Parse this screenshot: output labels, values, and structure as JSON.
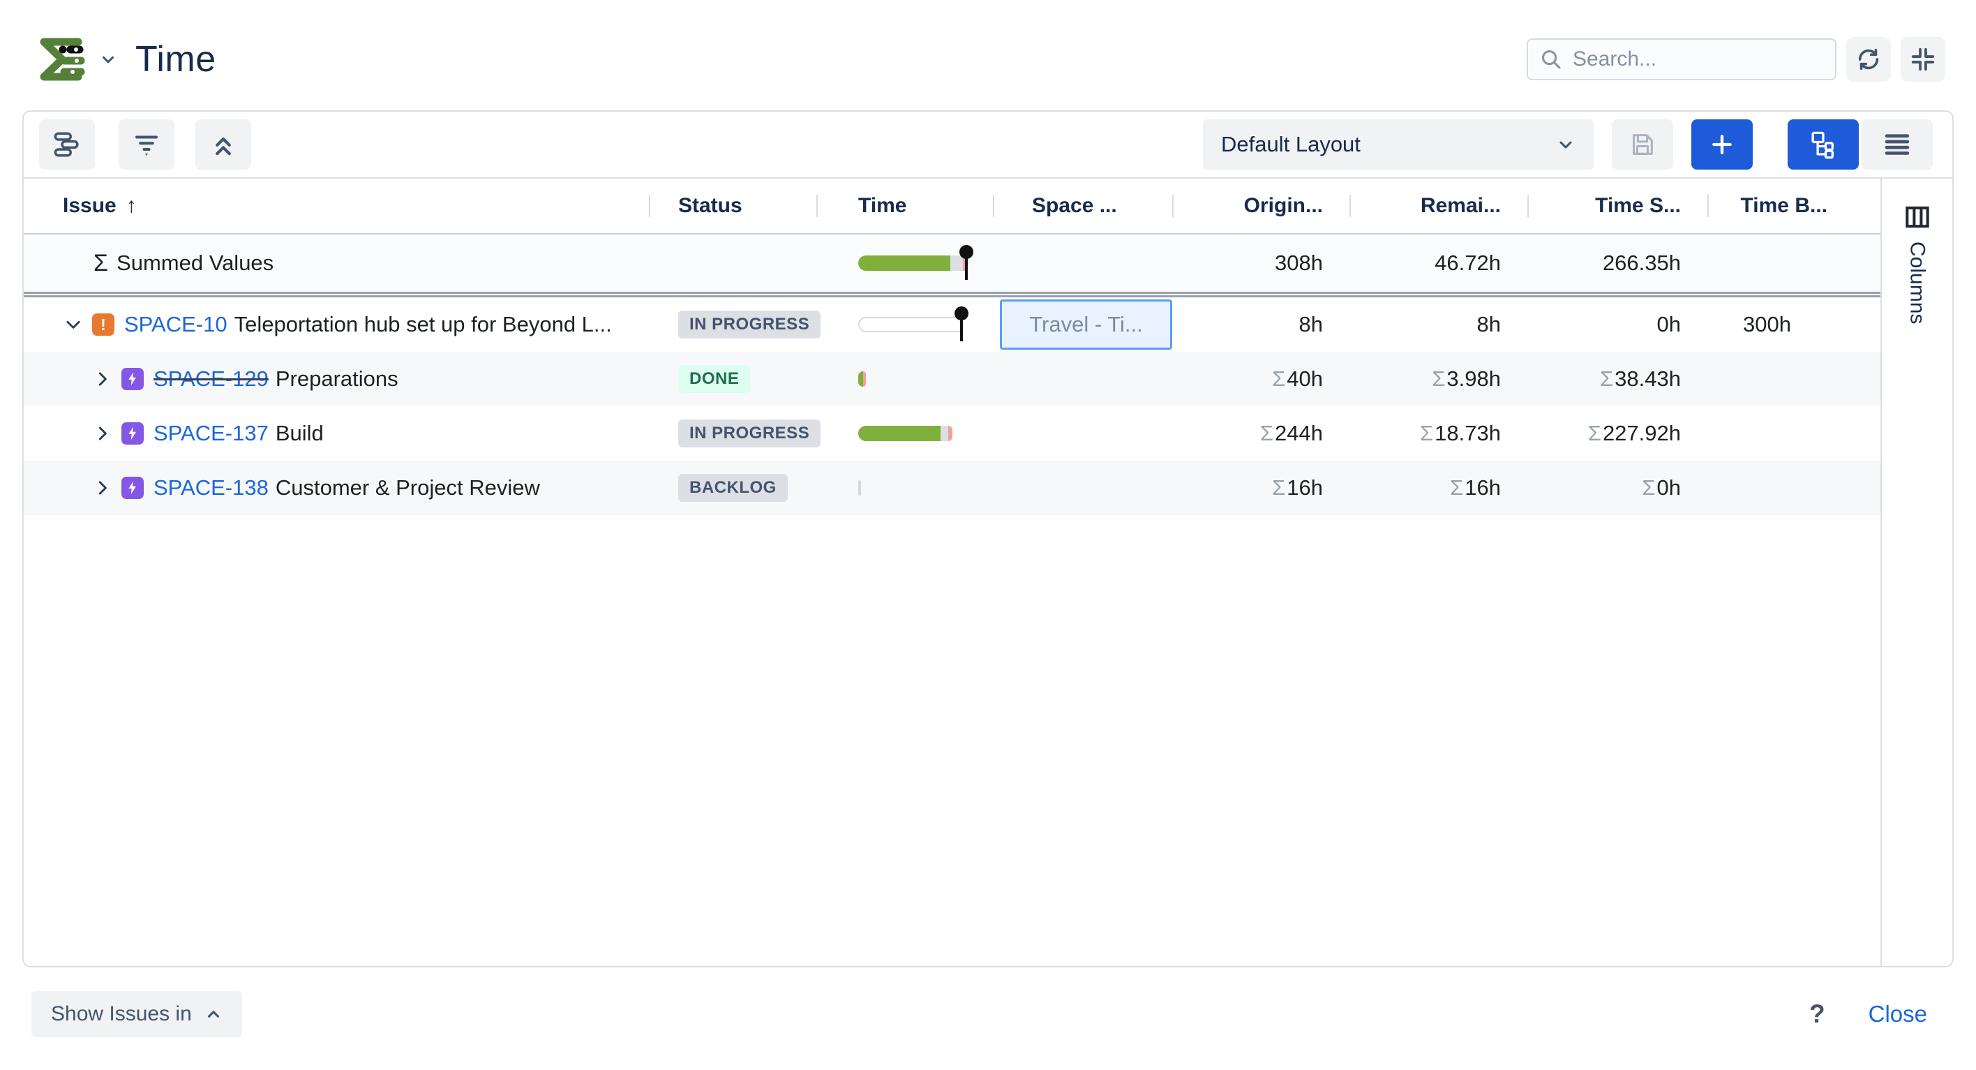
{
  "header": {
    "title": "Time",
    "search_placeholder": "Search..."
  },
  "toolbar": {
    "layout_selector_value": "Default Layout"
  },
  "table": {
    "headers": {
      "issue": "Issue",
      "sort_indicator": "↑",
      "status": "Status",
      "time": "Time",
      "space": "Space ...",
      "original_estimate": "Origin...",
      "remaining_estimate": "Remai...",
      "time_spent": "Time S...",
      "time_budget": "Time B..."
    },
    "summary_row": {
      "sigma": "Σ",
      "label": "Summed Values",
      "original_estimate": "308h",
      "remaining_estimate": "46.72h",
      "time_spent": "266.35h",
      "time_budget": "",
      "bar": {
        "segments": [
          {
            "color": "green",
            "width": 132
          },
          {
            "color": "gray",
            "width": 18
          },
          {
            "color": "red",
            "width": 7
          }
        ],
        "pin": true
      }
    },
    "rows": [
      {
        "key": "SPACE-10",
        "summary": "Teleportation hub set up for Beyond L...",
        "issue_type_icon": "warning-icon",
        "chevron": "down",
        "level": 0,
        "strikethrough": false,
        "zebra": false,
        "status": "IN PROGRESS",
        "status_variant": "gray",
        "bar": {
          "segments": [
            {
              "color": "track",
              "width": 150
            }
          ],
          "pin": true
        },
        "space_value": "Travel - Ti...",
        "space_selected": true,
        "original_estimate": {
          "sigma": false,
          "value": "8h"
        },
        "remaining_estimate": {
          "sigma": false,
          "value": "8h"
        },
        "time_spent": {
          "sigma": false,
          "value": "0h"
        },
        "time_budget": {
          "sigma": false,
          "value": "300h"
        }
      },
      {
        "key": "SPACE-129",
        "summary": "Preparations",
        "issue_type_icon": "bolt-icon",
        "chevron": "right",
        "level": 1,
        "strikethrough": true,
        "zebra": true,
        "status": "DONE",
        "status_variant": "green",
        "bar": {
          "segments": [
            {
              "color": "green",
              "width": 7
            },
            {
              "color": "red",
              "width": 4
            }
          ],
          "pin": false
        },
        "space_value": "",
        "space_selected": false,
        "original_estimate": {
          "sigma": true,
          "value": "40h"
        },
        "remaining_estimate": {
          "sigma": true,
          "value": "3.98h"
        },
        "time_spent": {
          "sigma": true,
          "value": "38.43h"
        },
        "time_budget": {
          "sigma": false,
          "value": ""
        }
      },
      {
        "key": "SPACE-137",
        "summary": "Build",
        "issue_type_icon": "bolt-icon",
        "chevron": "right",
        "level": 1,
        "strikethrough": false,
        "zebra": false,
        "status": "IN PROGRESS",
        "status_variant": "gray",
        "bar": {
          "segments": [
            {
              "color": "green",
              "width": 118
            },
            {
              "color": "gray",
              "width": 11
            },
            {
              "color": "red",
              "width": 6
            }
          ],
          "pin": false
        },
        "space_value": "",
        "space_selected": false,
        "original_estimate": {
          "sigma": true,
          "value": "244h"
        },
        "remaining_estimate": {
          "sigma": true,
          "value": "18.73h"
        },
        "time_spent": {
          "sigma": true,
          "value": "227.92h"
        },
        "time_budget": {
          "sigma": false,
          "value": ""
        }
      },
      {
        "key": "SPACE-138",
        "summary": "Customer & Project Review",
        "issue_type_icon": "bolt-icon",
        "chevron": "right",
        "level": 1,
        "strikethrough": false,
        "zebra": true,
        "status": "BACKLOG",
        "status_variant": "gray",
        "bar": {
          "segments": [
            {
              "color": "sliver",
              "width": 4
            }
          ],
          "pin": false
        },
        "space_value": "",
        "space_selected": false,
        "original_estimate": {
          "sigma": true,
          "value": "16h"
        },
        "remaining_estimate": {
          "sigma": true,
          "value": "16h"
        },
        "time_spent": {
          "sigma": true,
          "value": "0h"
        },
        "time_budget": {
          "sigma": false,
          "value": ""
        }
      }
    ]
  },
  "columns_panel": {
    "label": "Columns"
  },
  "footer": {
    "show_issues_label": "Show Issues in",
    "help_label": "?",
    "close_label": "Close"
  },
  "colors": {
    "accent_blue": "#1D5BD8",
    "link_blue": "#1A66DB",
    "progress_green": "#80B03C",
    "progress_red": "#F5A19A",
    "badge_gray_bg": "#DCDFE4",
    "badge_gray_text": "#44546F",
    "badge_done_bg": "#DCFFF1",
    "badge_done_text": "#216E4E",
    "selected_cell_bg": "#E9F2FF",
    "selected_cell_border": "#579DFF",
    "warning_icon_orange": "#E8792F",
    "bolt_icon_purple": "#8457E5",
    "logo_green": "#55803A"
  }
}
